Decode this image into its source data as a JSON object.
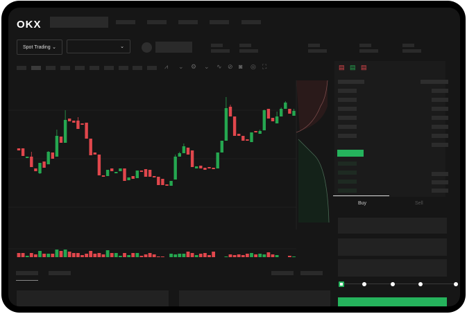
{
  "header": {
    "logo": "OKX"
  },
  "market": {
    "mode_label": "Spot Trading",
    "pair_value": ""
  },
  "order_form": {
    "tabs": [
      "Buy",
      "Sell"
    ],
    "active_tab": "Buy",
    "slider_steps": 5,
    "slider_value": 0
  },
  "colors": {
    "up": "#25a750",
    "down": "#e0474c",
    "accent": "#25b35c",
    "background": "#161616"
  },
  "chart_data": {
    "type": "candlestick",
    "candles": [
      [
        97,
        94,
        97,
        94
      ],
      [
        97,
        86,
        97,
        86
      ],
      [
        83,
        85,
        85,
        83
      ],
      [
        85,
        70,
        92,
        70
      ],
      [
        68,
        64,
        68,
        64
      ],
      [
        61,
        76,
        76,
        60
      ],
      [
        78,
        69,
        78,
        69
      ],
      [
        74,
        92,
        93,
        74
      ],
      [
        91,
        82,
        91,
        82
      ],
      [
        85,
        115,
        124,
        85
      ],
      [
        114,
        105,
        114,
        105
      ],
      [
        105,
        138,
        152,
        105
      ],
      [
        140,
        136,
        140,
        136
      ],
      [
        137,
        134,
        137,
        134
      ],
      [
        137,
        125,
        142,
        125
      ],
      [
        133,
        131,
        133,
        131
      ],
      [
        134,
        111,
        134,
        111
      ],
      [
        111,
        87,
        111,
        87
      ],
      [
        91,
        88,
        91,
        88
      ],
      [
        88,
        58,
        88,
        58
      ],
      [
        58,
        56,
        58,
        56
      ],
      [
        57,
        66,
        66,
        57
      ],
      [
        68,
        64,
        68,
        64
      ],
      [
        61,
        63,
        63,
        61
      ],
      [
        64,
        68,
        68,
        64
      ],
      [
        68,
        50,
        68,
        50
      ],
      [
        51,
        55,
        55,
        51
      ],
      [
        57,
        53,
        57,
        53
      ],
      [
        54,
        65,
        65,
        54
      ],
      [
        65,
        63,
        65,
        63
      ],
      [
        67,
        56,
        67,
        56
      ],
      [
        66,
        56,
        66,
        56
      ],
      [
        57,
        56,
        57,
        56
      ],
      [
        56,
        44,
        56,
        44
      ],
      [
        53,
        44,
        53,
        44
      ],
      [
        45,
        44,
        45,
        44
      ],
      [
        43,
        50,
        50,
        43
      ],
      [
        52,
        85,
        88,
        52
      ],
      [
        85,
        90,
        92,
        85
      ],
      [
        90,
        100,
        104,
        90
      ],
      [
        98,
        88,
        98,
        88
      ],
      [
        94,
        70,
        94,
        70
      ],
      [
        68,
        71,
        71,
        68
      ],
      [
        72,
        68,
        72,
        68
      ],
      [
        69,
        66,
        69,
        66
      ],
      [
        70,
        68,
        70,
        68
      ],
      [
        69,
        68,
        69,
        68
      ],
      [
        68,
        91,
        91,
        68
      ],
      [
        91,
        108,
        108,
        91
      ],
      [
        108,
        155,
        171,
        108
      ],
      [
        157,
        143,
        160,
        143
      ],
      [
        143,
        115,
        143,
        115
      ],
      [
        118,
        115,
        118,
        115
      ],
      [
        115,
        108,
        115,
        108
      ],
      [
        110,
        108,
        110,
        108
      ],
      [
        106,
        120,
        120,
        106
      ],
      [
        122,
        120,
        122,
        120
      ],
      [
        118,
        122,
        124,
        118
      ],
      [
        123,
        152,
        153,
        123
      ],
      [
        154,
        140,
        154,
        140
      ],
      [
        141,
        136,
        141,
        136
      ],
      [
        133,
        143,
        150,
        133
      ],
      [
        143,
        154,
        156,
        143
      ],
      [
        154,
        163,
        165,
        154
      ],
      [
        154,
        147,
        154,
        147
      ],
      [
        144,
        151,
        154,
        144
      ]
    ],
    "volume": [
      10,
      10,
      6,
      10,
      8,
      13,
      9,
      9,
      9,
      15,
      13,
      15,
      12,
      10,
      10,
      7,
      9,
      13,
      9,
      10,
      8,
      14,
      10,
      10,
      6,
      10,
      7,
      10,
      10,
      6,
      8,
      10,
      8,
      5,
      5,
      3,
      9,
      8,
      9,
      9,
      12,
      10,
      7,
      9,
      10,
      7,
      12,
      3,
      3,
      5,
      8,
      7,
      8,
      7,
      9,
      10,
      8,
      9,
      8,
      11,
      8,
      7,
      4,
      3,
      6,
      5
    ],
    "depth": {
      "asks": "red area above mid price",
      "bids": "green area below mid price"
    }
  }
}
